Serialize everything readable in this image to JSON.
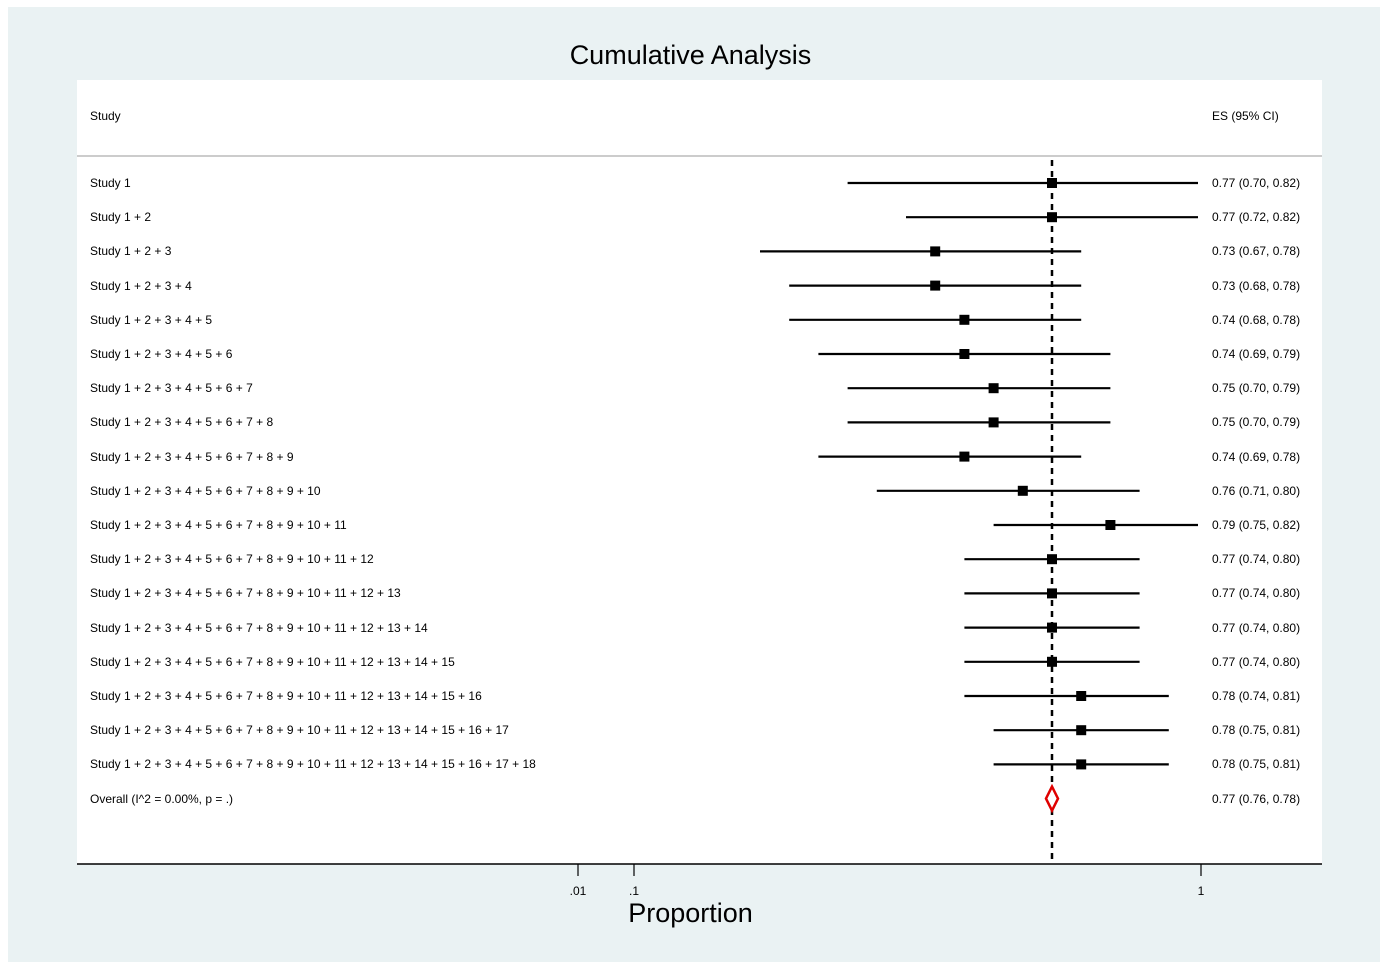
{
  "chart_data": {
    "type": "forest",
    "title": "Cumulative Analysis",
    "xlabel": "Proportion",
    "column_headers": {
      "study": "Study",
      "es": "ES (95% CI)"
    },
    "x_ticks": [
      {
        "value": 0.01,
        "label": ".01"
      },
      {
        "value": 0.1,
        "label": ".1"
      },
      {
        "value": 1,
        "label": "1"
      }
    ],
    "overall_line_value": 0.77,
    "rows": [
      {
        "label": "Study 1",
        "es": 0.77,
        "lo": 0.7,
        "hi": 0.82,
        "text": "0.77 (0.70, 0.82)"
      },
      {
        "label": "Study 1 + 2",
        "es": 0.77,
        "lo": 0.72,
        "hi": 0.82,
        "text": "0.77 (0.72, 0.82)"
      },
      {
        "label": "Study 1 + 2 + 3",
        "es": 0.73,
        "lo": 0.67,
        "hi": 0.78,
        "text": "0.73 (0.67, 0.78)"
      },
      {
        "label": "Study 1 + 2 + 3 + 4",
        "es": 0.73,
        "lo": 0.68,
        "hi": 0.78,
        "text": "0.73 (0.68, 0.78)"
      },
      {
        "label": "Study 1 + 2 + 3 + 4 + 5",
        "es": 0.74,
        "lo": 0.68,
        "hi": 0.78,
        "text": "0.74 (0.68, 0.78)"
      },
      {
        "label": "Study 1 + 2 + 3 + 4 + 5 + 6",
        "es": 0.74,
        "lo": 0.69,
        "hi": 0.79,
        "text": "0.74 (0.69, 0.79)"
      },
      {
        "label": "Study 1 + 2 + 3 + 4 + 5 + 6 + 7",
        "es": 0.75,
        "lo": 0.7,
        "hi": 0.79,
        "text": "0.75 (0.70, 0.79)"
      },
      {
        "label": "Study 1 + 2 + 3 + 4 + 5 + 6 + 7 + 8",
        "es": 0.75,
        "lo": 0.7,
        "hi": 0.79,
        "text": "0.75 (0.70, 0.79)"
      },
      {
        "label": "Study 1 + 2 + 3 + 4 + 5 + 6 + 7 + 8 + 9",
        "es": 0.74,
        "lo": 0.69,
        "hi": 0.78,
        "text": "0.74 (0.69, 0.78)"
      },
      {
        "label": "Study 1 + 2 + 3 + 4 + 5 + 6 + 7 + 8 + 9 + 10",
        "es": 0.76,
        "lo": 0.71,
        "hi": 0.8,
        "text": "0.76 (0.71, 0.80)"
      },
      {
        "label": "Study 1 + 2 + 3 + 4 + 5 + 6 + 7 + 8 + 9 + 10 + 11",
        "es": 0.79,
        "lo": 0.75,
        "hi": 0.82,
        "text": "0.79 (0.75, 0.82)"
      },
      {
        "label": "Study 1 + 2 + 3 + 4 + 5 + 6 + 7 + 8 + 9 + 10 + 11 + 12",
        "es": 0.77,
        "lo": 0.74,
        "hi": 0.8,
        "text": "0.77 (0.74, 0.80)"
      },
      {
        "label": "Study 1 + 2 + 3 + 4 + 5 + 6 + 7 + 8 + 9 + 10 + 11 + 12 + 13",
        "es": 0.77,
        "lo": 0.74,
        "hi": 0.8,
        "text": "0.77 (0.74, 0.80)"
      },
      {
        "label": "Study 1 + 2 + 3 + 4 + 5 + 6 + 7 + 8 + 9 + 10 + 11 + 12 + 13 + 14",
        "es": 0.77,
        "lo": 0.74,
        "hi": 0.8,
        "text": "0.77 (0.74, 0.80)"
      },
      {
        "label": "Study 1 + 2 + 3 + 4 + 5 + 6 + 7 + 8 + 9 + 10 + 11 + 12 + 13 + 14 + 15",
        "es": 0.77,
        "lo": 0.74,
        "hi": 0.8,
        "text": "0.77 (0.74, 0.80)"
      },
      {
        "label": "Study 1 + 2 + 3 + 4 + 5 + 6 + 7 + 8 + 9 + 10 + 11 + 12 + 13 + 14 + 15 + 16",
        "es": 0.78,
        "lo": 0.74,
        "hi": 0.81,
        "text": "0.78 (0.74, 0.81)"
      },
      {
        "label": "Study 1 + 2 + 3 + 4 + 5 + 6 + 7 + 8 + 9 + 10 + 11 + 12 + 13 + 14 + 15 + 16 + 17",
        "es": 0.78,
        "lo": 0.75,
        "hi": 0.81,
        "text": "0.78 (0.75, 0.81)"
      },
      {
        "label": "Study 1 + 2 + 3 + 4 + 5 + 6 + 7 + 8 + 9 + 10 + 11 + 12 + 13 + 14 + 15 + 16 + 17 + 18",
        "es": 0.78,
        "lo": 0.75,
        "hi": 0.81,
        "text": "0.78 (0.75, 0.81)"
      }
    ],
    "overall": {
      "label": "Overall  (I^2 = 0.00%, p = .)",
      "es": 0.77,
      "lo": 0.76,
      "hi": 0.78,
      "text": "0.77 (0.76, 0.78)"
    },
    "colors": {
      "marker": "#000000",
      "overall_diamond": "#e00000",
      "background": "#eaf2f3"
    }
  }
}
